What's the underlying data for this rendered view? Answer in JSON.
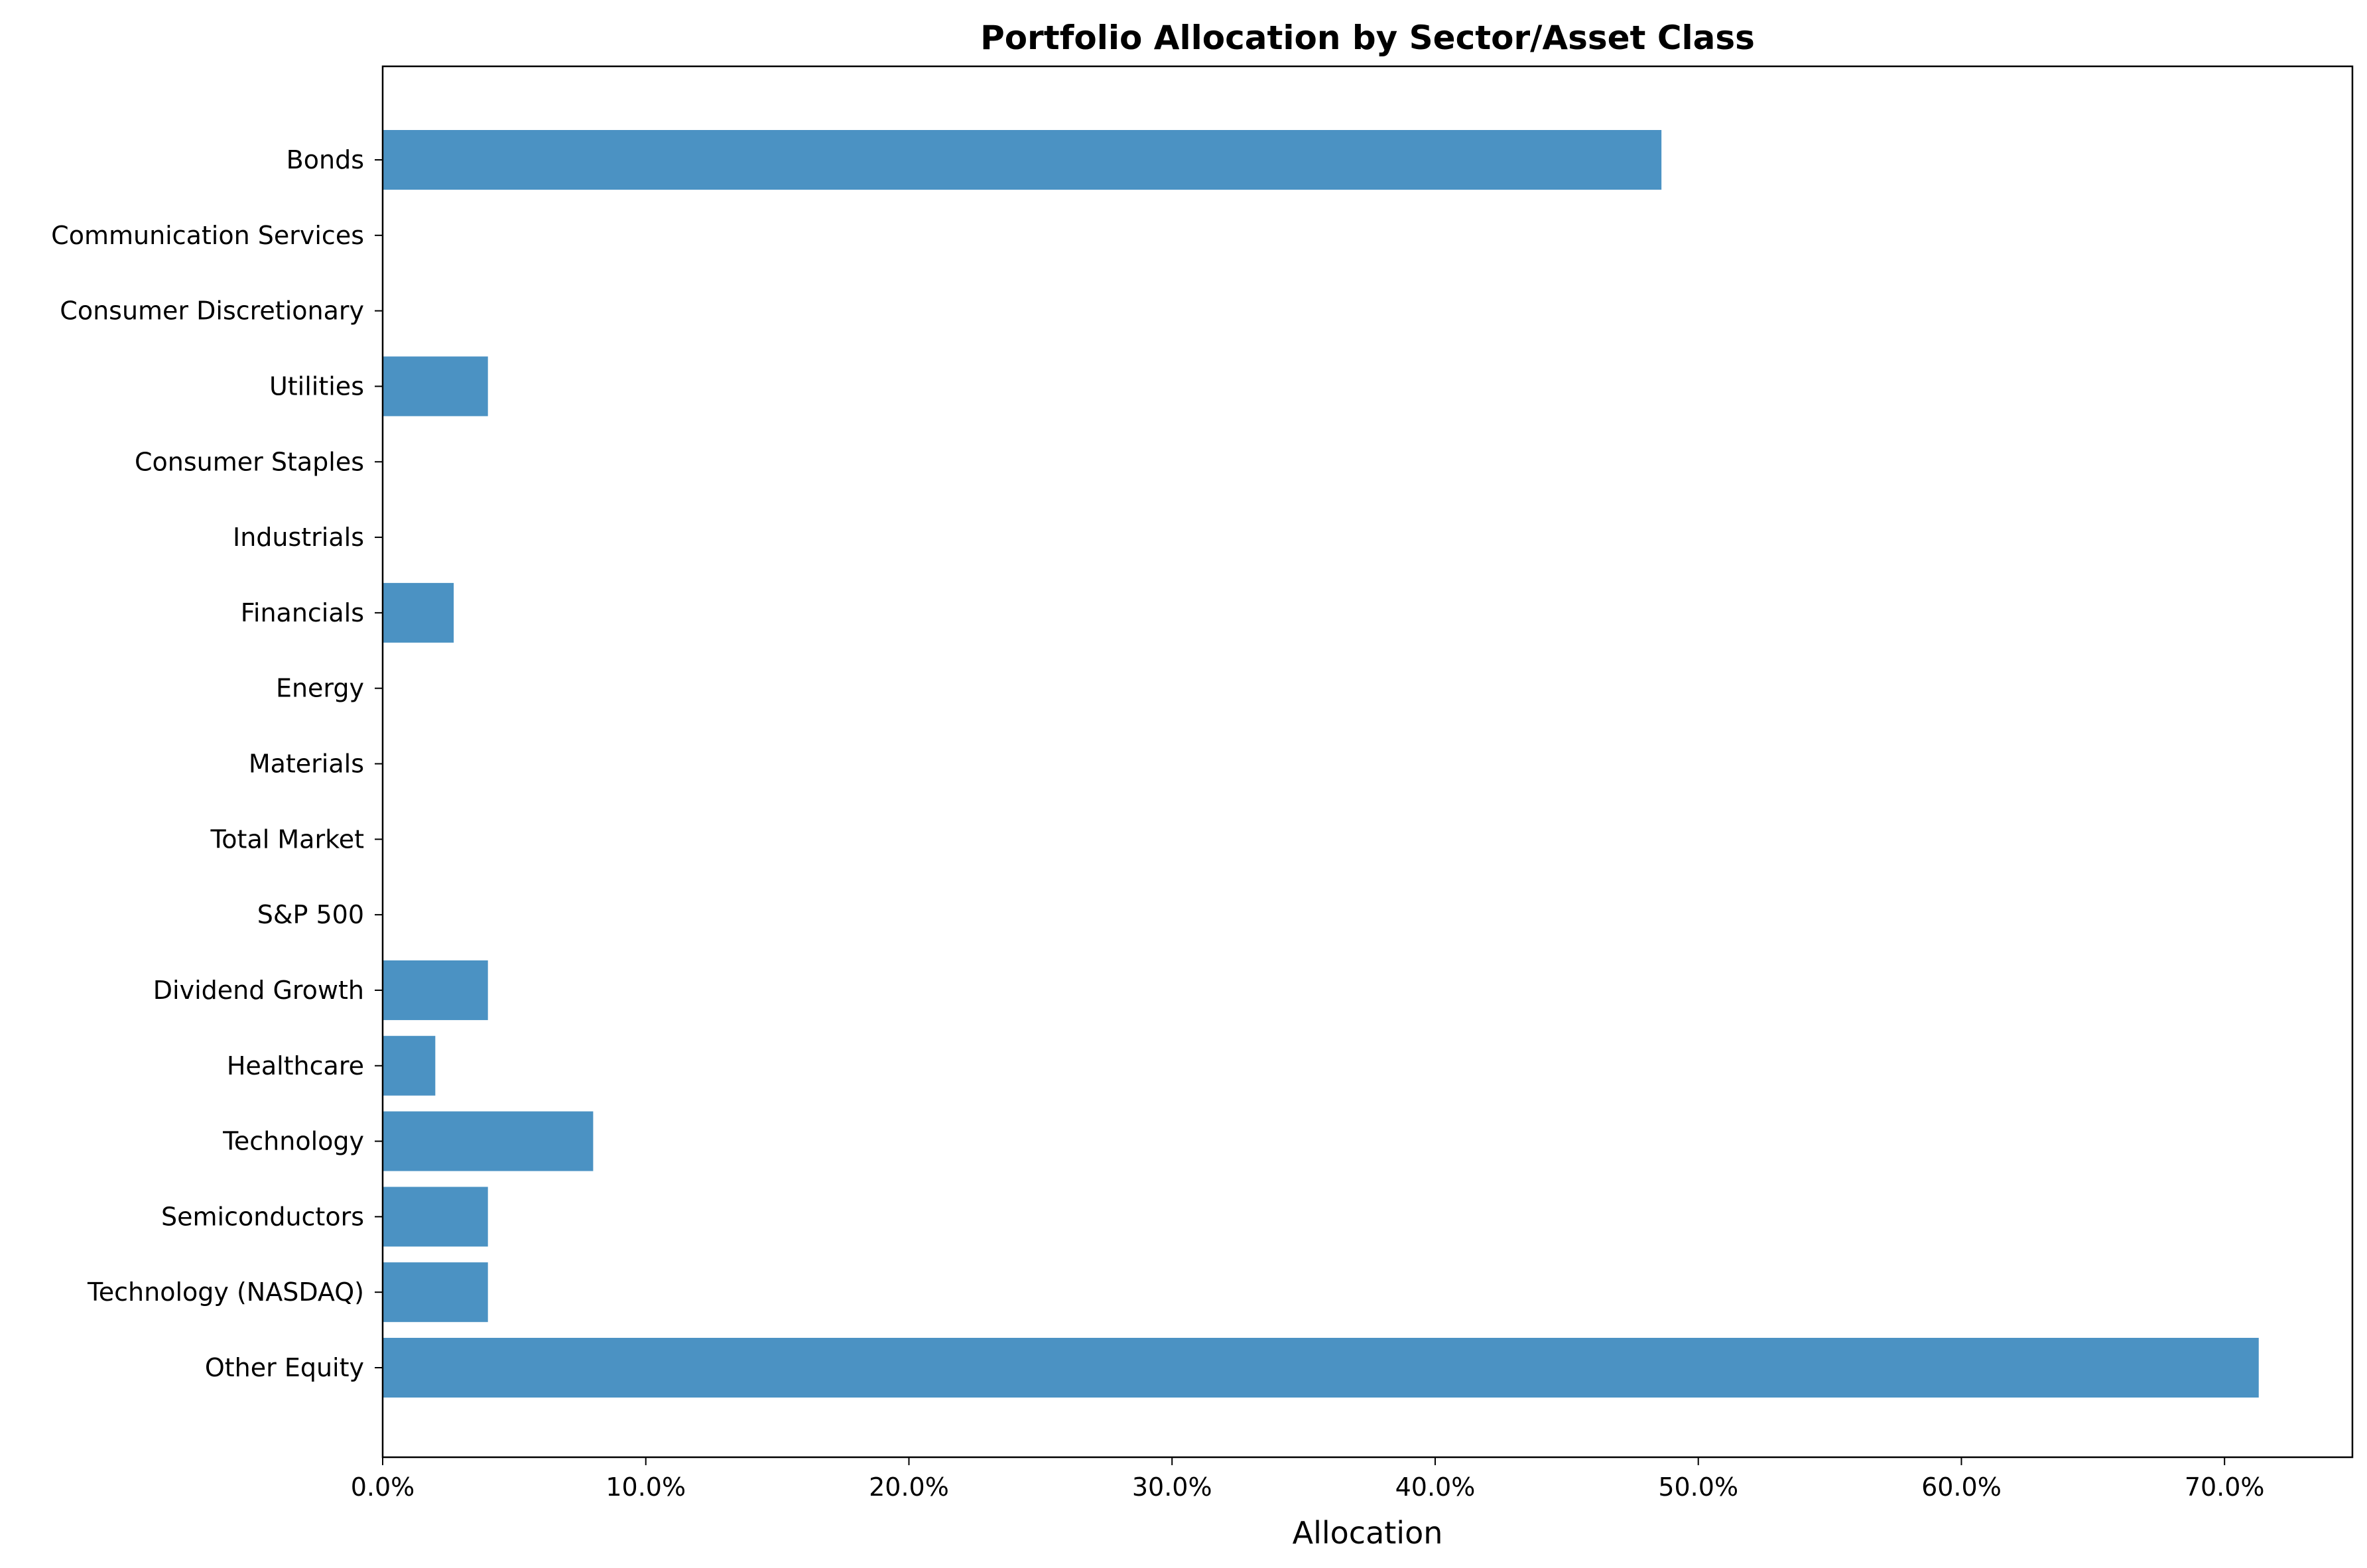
{
  "chart_data": {
    "type": "bar",
    "orientation": "horizontal",
    "title": "Portfolio Allocation by Sector/Asset Class",
    "xlabel": "Allocation",
    "ylabel": "",
    "xlim": [
      0,
      74.86
    ],
    "xticks": [
      0,
      10,
      20,
      30,
      40,
      50,
      60,
      70
    ],
    "xtick_labels": [
      "0.0%",
      "10.0%",
      "20.0%",
      "30.0%",
      "40.0%",
      "50.0%",
      "60.0%",
      "70.0%"
    ],
    "categories": [
      "Bonds",
      "Communication Services",
      "Consumer Discretionary",
      "Utilities",
      "Consumer Staples",
      "Industrials",
      "Financials",
      "Energy",
      "Materials",
      "Total Market",
      "S&P 500",
      "Dividend Growth",
      "Healthcare",
      "Technology",
      "Semiconductors",
      "Technology (NASDAQ)",
      "Other Equity"
    ],
    "values": [
      48.6,
      0,
      0,
      4.0,
      0,
      0,
      2.7,
      0,
      0,
      0,
      0,
      4.0,
      2.0,
      8.0,
      4.0,
      4.0,
      71.3
    ],
    "bar_color": "#4b92c3",
    "grid": false,
    "legend": "none"
  }
}
